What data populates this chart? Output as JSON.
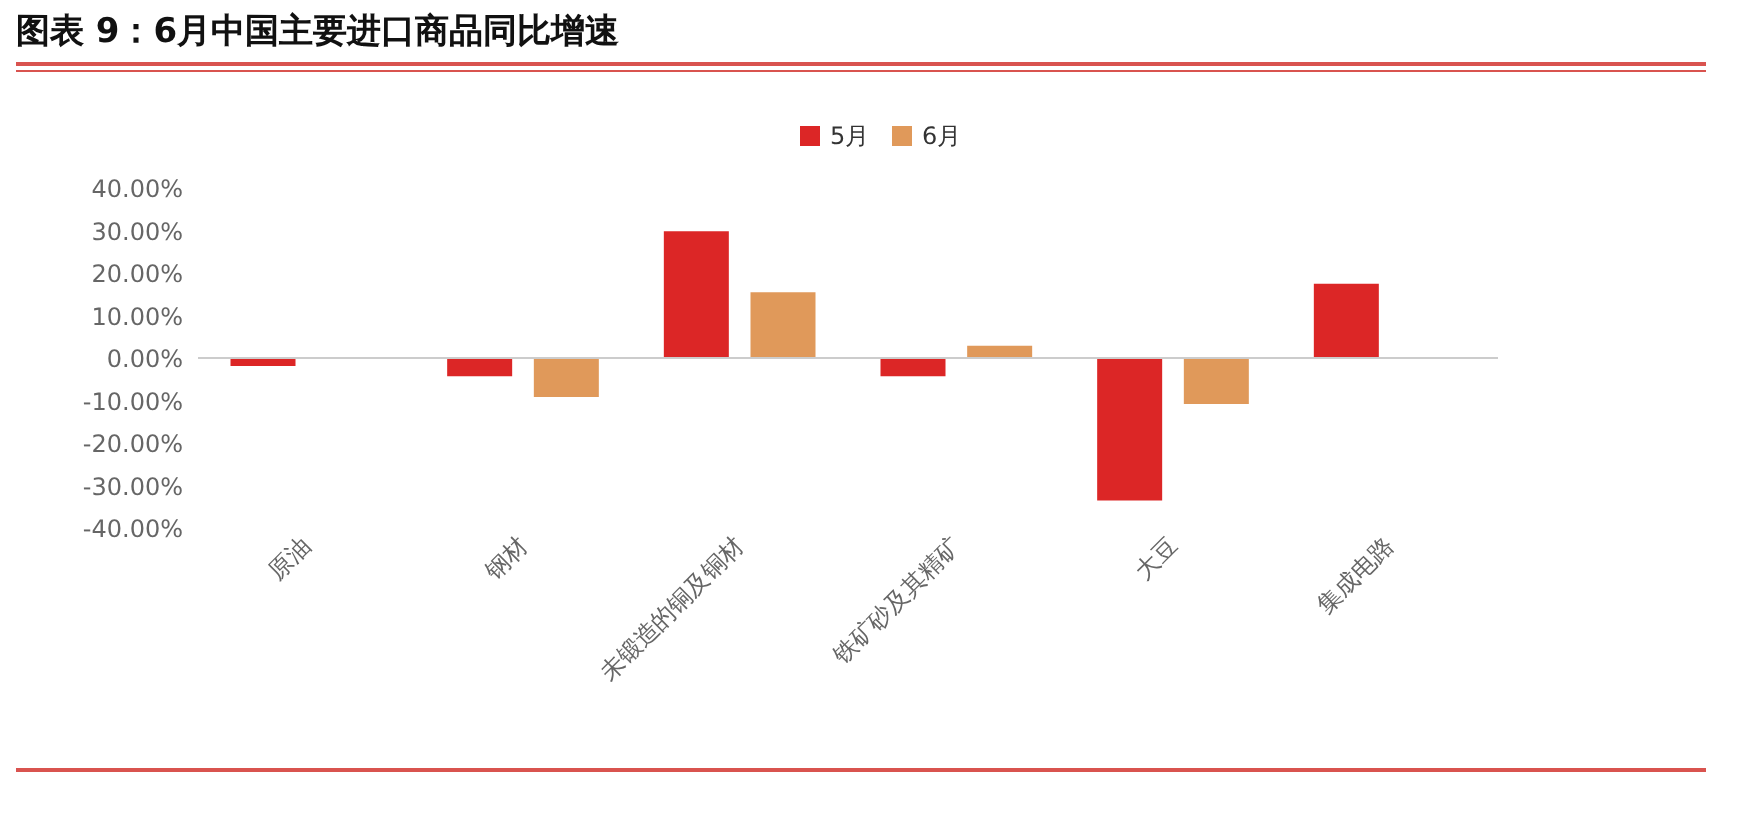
{
  "chart_data": {
    "type": "bar",
    "title": "图表 9：6月中国主要进口商品同比增速",
    "categories": [
      "原油",
      "钢材",
      "未锻造的铜及铜材",
      "铁矿砂及其精矿",
      "大豆",
      "集成电路"
    ],
    "series": [
      {
        "name": "5月",
        "color": "#dc2626",
        "values": [
          -1.9,
          -4.3,
          29.8,
          -4.3,
          -33.5,
          17.5
        ]
      },
      {
        "name": "6月",
        "color": "#e0995a",
        "values": [
          null,
          -9.2,
          15.5,
          2.9,
          -10.8,
          null
        ]
      }
    ],
    "ylim": [
      -40,
      40
    ],
    "yticks": [
      {
        "value": -40,
        "label": "-40.00%"
      },
      {
        "value": -30,
        "label": "-30.00%"
      },
      {
        "value": -20,
        "label": "-20.00%"
      },
      {
        "value": -10,
        "label": "-10.00%"
      },
      {
        "value": 0,
        "label": "0.00%"
      },
      {
        "value": 10,
        "label": "10.00%"
      },
      {
        "value": 20,
        "label": "20.00%"
      },
      {
        "value": 30,
        "label": "30.00%"
      },
      {
        "value": 40,
        "label": "40.00%"
      }
    ],
    "ref_lines": [
      {
        "axis": "y",
        "value": 0,
        "color": "#cccccc"
      }
    ],
    "grid": false,
    "legend": "top"
  }
}
